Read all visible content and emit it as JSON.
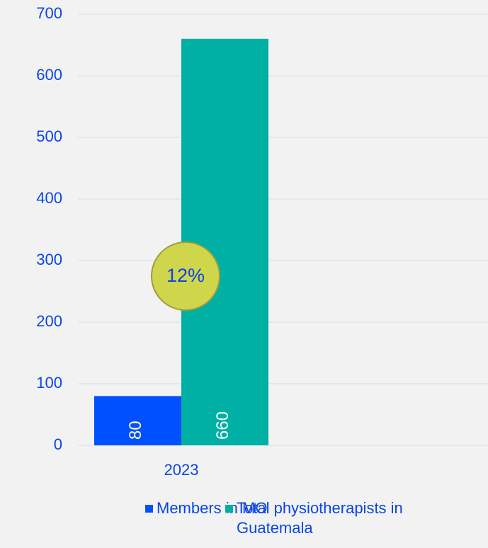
{
  "chart_data": {
    "type": "bar",
    "categories": [
      "2023"
    ],
    "series": [
      {
        "name": "Members in MO",
        "color": "#0050ff",
        "values": [
          80
        ]
      },
      {
        "name": "Total physiotherapists in Guatemala",
        "color": "#00b0a4",
        "values": [
          660
        ]
      }
    ],
    "ylim": [
      0,
      700
    ],
    "yticks": [
      0,
      100,
      200,
      300,
      400,
      500,
      600,
      700
    ],
    "grid": true,
    "annotation": "12%",
    "legend": "bottom"
  }
}
